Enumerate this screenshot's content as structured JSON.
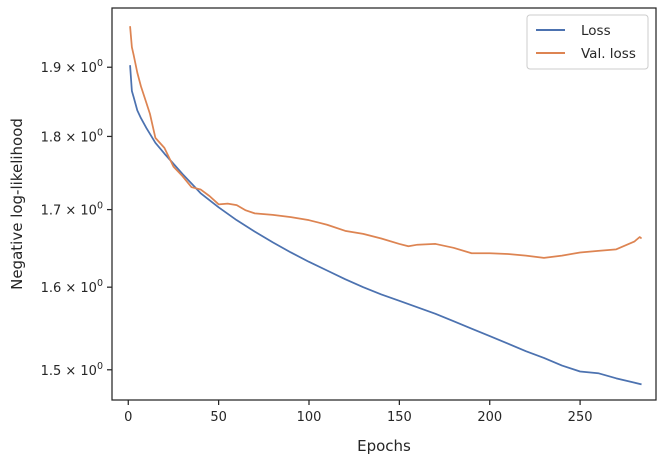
{
  "chart_data": {
    "type": "line",
    "xlabel": "Epochs",
    "ylabel": "Negative log-likelihood",
    "yscale": "log",
    "xlim": [
      -9,
      292
    ],
    "ylim": [
      1.465,
      1.99
    ],
    "grid": false,
    "legend_position": "top-right",
    "x_ticks": [
      0,
      50,
      100,
      150,
      200,
      250
    ],
    "x_tick_labels": [
      "0",
      "50",
      "100",
      "150",
      "200",
      "250"
    ],
    "y_ticks": [
      1.5,
      1.6,
      1.7,
      1.8,
      1.9
    ],
    "y_tick_labels": [
      {
        "mantissa": "1.5",
        "base": "10",
        "exp": "0"
      },
      {
        "mantissa": "1.6",
        "base": "10",
        "exp": "0"
      },
      {
        "mantissa": "1.7",
        "base": "10",
        "exp": "0"
      },
      {
        "mantissa": "1.8",
        "base": "10",
        "exp": "0"
      },
      {
        "mantissa": "1.9",
        "base": "10",
        "exp": "0"
      }
    ],
    "series": [
      {
        "name": "Loss",
        "color": "#4c72b0",
        "x": [
          1,
          2,
          3,
          5,
          7,
          10,
          15,
          20,
          25,
          30,
          35,
          40,
          50,
          60,
          70,
          80,
          90,
          100,
          110,
          120,
          130,
          140,
          150,
          160,
          170,
          180,
          190,
          200,
          210,
          220,
          230,
          240,
          250,
          260,
          270,
          280,
          284
        ],
        "y": [
          1.903,
          1.865,
          1.856,
          1.837,
          1.826,
          1.812,
          1.791,
          1.776,
          1.762,
          1.748,
          1.735,
          1.722,
          1.703,
          1.686,
          1.671,
          1.657,
          1.644,
          1.632,
          1.621,
          1.61,
          1.6,
          1.591,
          1.583,
          1.575,
          1.567,
          1.558,
          1.549,
          1.54,
          1.531,
          1.522,
          1.514,
          1.505,
          1.498,
          1.496,
          1.49,
          1.485,
          1.483
        ]
      },
      {
        "name": "Val. loss",
        "color": "#dd8452",
        "x": [
          1,
          2,
          3,
          5,
          7,
          10,
          12,
          15,
          20,
          25,
          30,
          35,
          40,
          45,
          50,
          55,
          60,
          65,
          70,
          80,
          90,
          100,
          105,
          110,
          120,
          130,
          140,
          150,
          155,
          160,
          170,
          180,
          190,
          200,
          210,
          220,
          230,
          240,
          250,
          260,
          270,
          280,
          283,
          284
        ],
        "y": [
          1.962,
          1.93,
          1.918,
          1.892,
          1.872,
          1.848,
          1.832,
          1.798,
          1.784,
          1.758,
          1.745,
          1.73,
          1.727,
          1.718,
          1.707,
          1.708,
          1.706,
          1.699,
          1.695,
          1.693,
          1.69,
          1.686,
          1.683,
          1.68,
          1.672,
          1.668,
          1.662,
          1.655,
          1.652,
          1.654,
          1.655,
          1.65,
          1.643,
          1.643,
          1.642,
          1.64,
          1.637,
          1.64,
          1.644,
          1.646,
          1.648,
          1.658,
          1.664,
          1.662
        ]
      }
    ]
  }
}
